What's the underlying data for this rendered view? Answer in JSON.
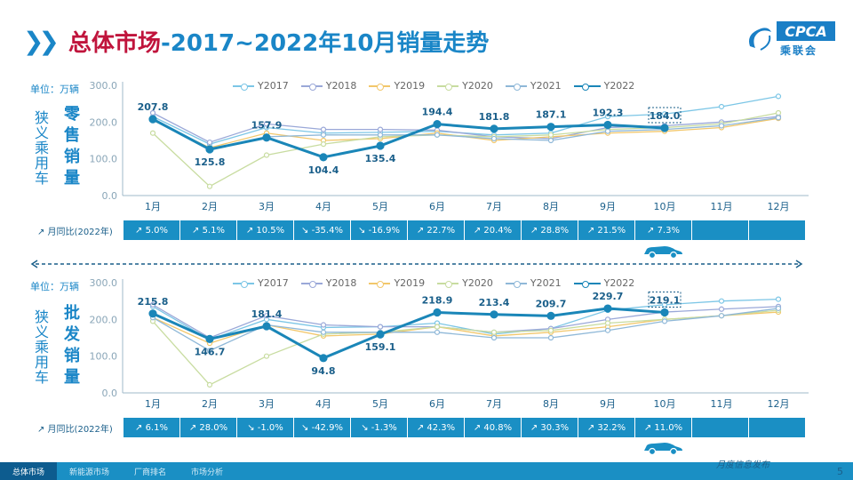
{
  "title": {
    "main": "总体市场",
    "rest": "-2017~2022年10月销量走势"
  },
  "logo": {
    "text": "CPCA",
    "sub": "乘联会"
  },
  "colors": {
    "Y2017": "#7cc6e6",
    "Y2018": "#9aa8d8",
    "Y2019": "#f2c76b",
    "Y2020": "#c8dca0",
    "Y2021": "#8fb8d8",
    "Y2022": "#1a86b8"
  },
  "chart_data": [
    {
      "type": "line",
      "unit_label": "单位：万辆",
      "ylabel_side": "狭义乘用车",
      "ylabel_main": "零售销量",
      "categories": [
        "1月",
        "2月",
        "3月",
        "4月",
        "5月",
        "6月",
        "7月",
        "8月",
        "9月",
        "10月",
        "11月",
        "12月"
      ],
      "yticks": [
        "0.0",
        "100.0",
        "200.0",
        "300.0"
      ],
      "ylim": [
        0,
        300
      ],
      "series": [
        {
          "name": "Y2017",
          "values": [
            215,
            140,
            185,
            170,
            172,
            175,
            165,
            170,
            215,
            222,
            242,
            270
          ]
        },
        {
          "name": "Y2018",
          "values": [
            225,
            145,
            195,
            180,
            180,
            178,
            160,
            155,
            185,
            190,
            200,
            215
          ]
        },
        {
          "name": "Y2019",
          "values": [
            205,
            130,
            170,
            150,
            155,
            170,
            150,
            160,
            170,
            175,
            185,
            210
          ]
        },
        {
          "name": "Y2020",
          "values": [
            170,
            25,
            110,
            140,
            160,
            165,
            160,
            165,
            180,
            185,
            195,
            225
          ]
        },
        {
          "name": "Y2021",
          "values": [
            210,
            125,
            160,
            165,
            165,
            165,
            155,
            150,
            175,
            180,
            190,
            212
          ]
        },
        {
          "name": "Y2022",
          "values": [
            207.8,
            125.8,
            157.9,
            104.4,
            135.4,
            194.4,
            181.8,
            187.1,
            192.3,
            184.0,
            null,
            null
          ]
        }
      ],
      "data_labels": [
        "207.8",
        "125.8",
        "157.9",
        "104.4",
        "135.4",
        "194.4",
        "181.8",
        "187.1",
        "192.3",
        "184.0"
      ],
      "yoy_label": "月同比(2022年)",
      "yoy": [
        "5.0%",
        "5.1%",
        "10.5%",
        "-35.4%",
        "-16.9%",
        "22.7%",
        "20.4%",
        "28.8%",
        "21.5%",
        "7.3%",
        "",
        ""
      ]
    },
    {
      "type": "line",
      "unit_label": "单位：万辆",
      "ylabel_side": "狭义乘用车",
      "ylabel_main": "批发销量",
      "categories": [
        "1月",
        "2月",
        "3月",
        "4月",
        "5月",
        "6月",
        "7月",
        "8月",
        "9月",
        "10月",
        "11月",
        "12月"
      ],
      "yticks": [
        "0.0",
        "100.0",
        "200.0",
        "300.0"
      ],
      "ylim": [
        0,
        300
      ],
      "series": [
        {
          "name": "Y2017",
          "values": [
            235,
            145,
            200,
            178,
            180,
            190,
            160,
            175,
            225,
            240,
            250,
            255
          ]
        },
        {
          "name": "Y2018",
          "values": [
            240,
            150,
            210,
            185,
            180,
            180,
            165,
            175,
            200,
            220,
            228,
            235
          ]
        },
        {
          "name": "Y2019",
          "values": [
            205,
            135,
            185,
            155,
            160,
            180,
            155,
            165,
            180,
            200,
            210,
            220
          ]
        },
        {
          "name": "Y2020",
          "values": [
            195,
            22,
            100,
            160,
            165,
            180,
            165,
            170,
            190,
            200,
            210,
            225
          ]
        },
        {
          "name": "Y2021",
          "values": [
            205,
            115,
            185,
            165,
            165,
            165,
            150,
            150,
            170,
            195,
            210,
            230
          ]
        },
        {
          "name": "Y2022",
          "values": [
            215.8,
            146.7,
            181.4,
            94.8,
            159.1,
            218.9,
            213.4,
            209.7,
            229.7,
            219.1,
            null,
            null
          ]
        }
      ],
      "data_labels": [
        "215.8",
        "146.7",
        "181.4",
        "94.8",
        "159.1",
        "218.9",
        "213.4",
        "209.7",
        "229.7",
        "219.1"
      ],
      "yoy_label": "月同比(2022年)",
      "yoy": [
        "6.1%",
        "28.0%",
        "-1.0%",
        "-42.9%",
        "-1.3%",
        "42.3%",
        "40.8%",
        "30.3%",
        "32.2%",
        "11.0%",
        "",
        ""
      ]
    }
  ],
  "footer": {
    "tabs": [
      "总体市场",
      "新能源市场",
      "厂商排名",
      "市场分析"
    ],
    "publish": "月度信息发布",
    "page": "5"
  }
}
